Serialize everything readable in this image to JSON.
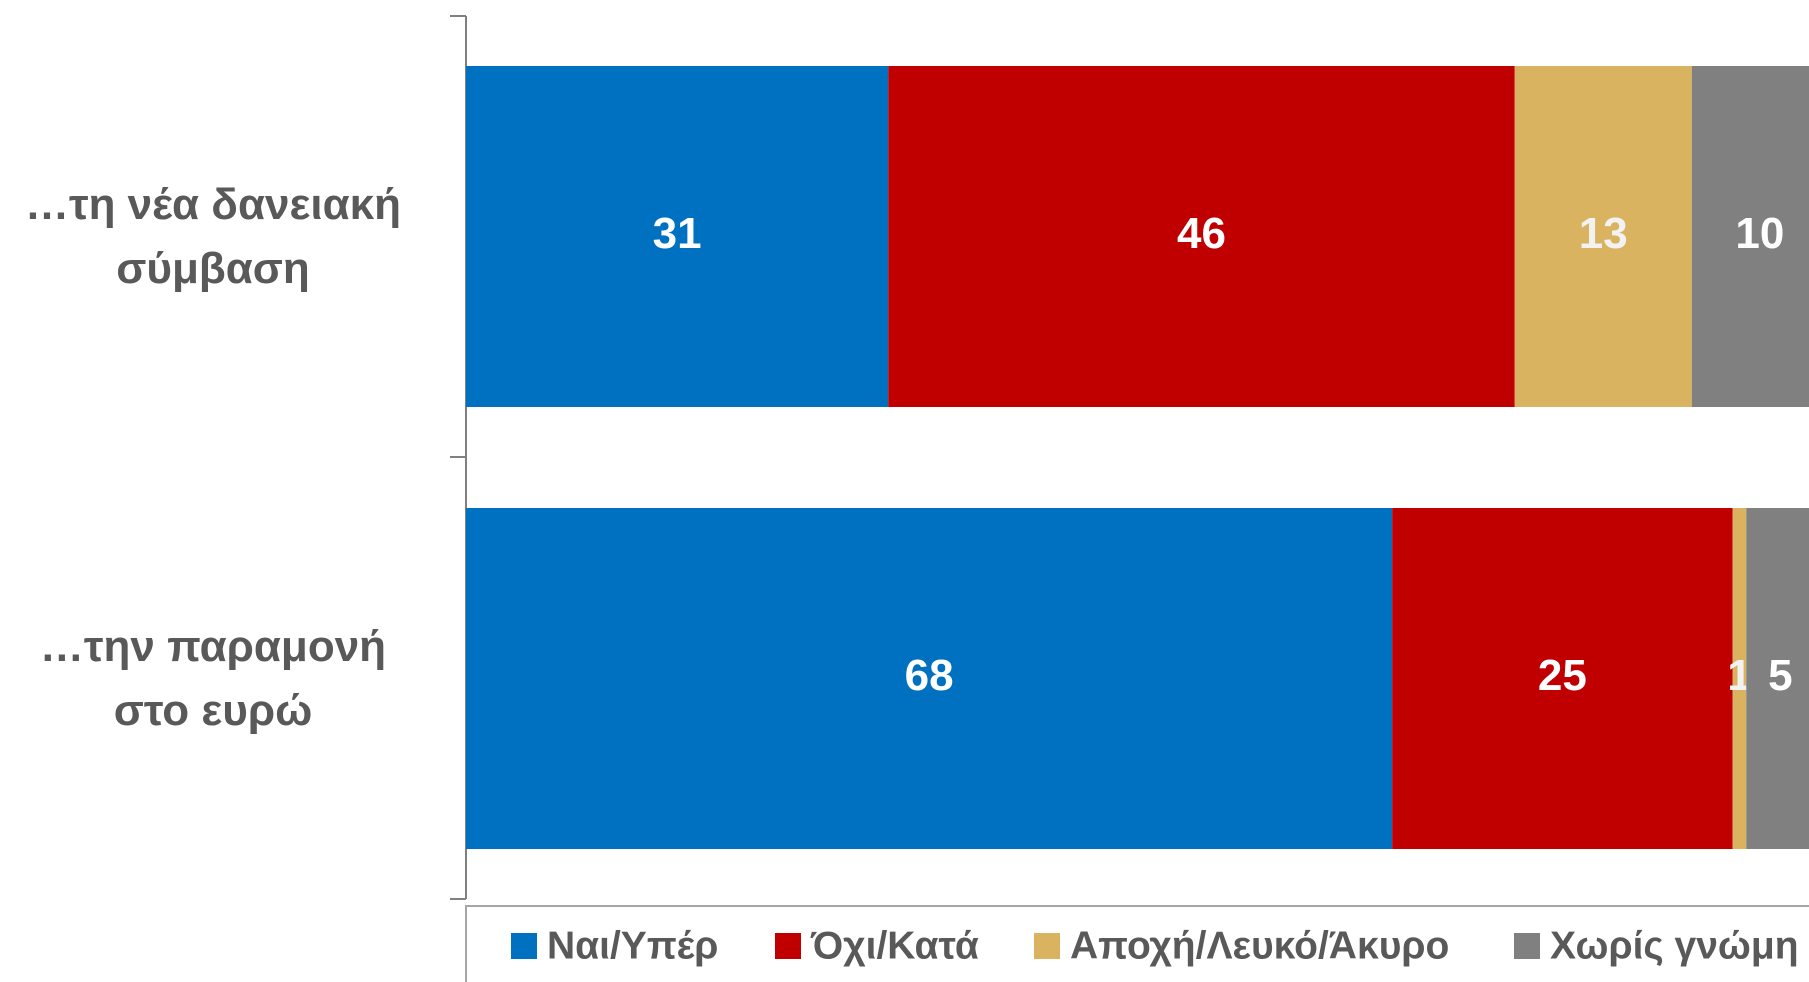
{
  "chart_data": {
    "type": "stacked-barh",
    "categories": [
      "…τη νέα δανειακή\nσύμβαση",
      "…την παραμονή\nστο ευρώ"
    ],
    "series": [
      {
        "name": "Ναι/Υπέρ",
        "color": "#0070c0",
        "values": [
          31,
          68
        ]
      },
      {
        "name": "Όχι/Κατά",
        "color": "#c00000",
        "values": [
          46,
          25
        ]
      },
      {
        "name": "Αποχή/Λευκό/Άκυρο",
        "color": "#d9b35f",
        "values": [
          13,
          1
        ]
      },
      {
        "name": "Χωρίς γνώμη",
        "color": "#808080",
        "values": [
          10,
          5
        ]
      }
    ],
    "xlim": [
      0,
      100
    ]
  }
}
